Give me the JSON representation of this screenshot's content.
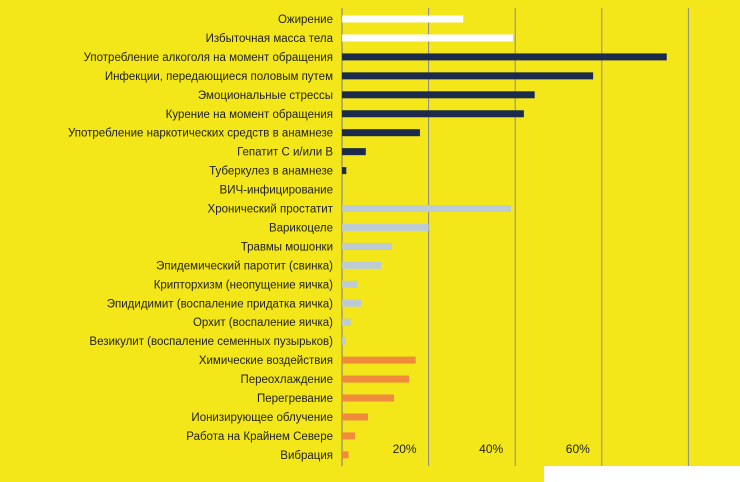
{
  "chart_data": {
    "type": "bar",
    "orientation": "horizontal",
    "title": "",
    "xlabel": "",
    "ylabel": "",
    "xlim": [
      0,
      80
    ],
    "x_ticks": [
      20,
      40,
      60
    ],
    "x_tick_labels": [
      "20%",
      "40%",
      "60%"
    ],
    "grid": true,
    "legend": "none",
    "categories": [
      "Ожирение",
      "Избыточная масса тела",
      "Употребление алкоголя на момент обращения",
      "Инфекции, передающиеся половым путем",
      "Эмоциональные стрессы",
      "Курение на момент обращения",
      "Употребление наркотических средств в анамнезе",
      "Гепатит С и/или В",
      "Туберкулез в анамнезе",
      "ВИЧ-инфицирование",
      "Хронический простатит",
      "Варикоцеле",
      "Травмы мошонки",
      "Эпидемический паротит (свинка)",
      "Крипторхизм (неопущение яичка)",
      "Эпидидимит (воспаление придатка яичка)",
      "Орхит (воспаление яичка)",
      "Везикулит (воспаление семенных пузырьков)",
      "Химические воздействия",
      "Переохлаждение",
      "Перегревание",
      "Ионизирующее облучение",
      "Работа на Крайнем Севере",
      "Вибрация"
    ],
    "values": [
      28,
      39.5,
      75,
      58,
      44.5,
      42,
      18,
      5.5,
      1,
      0,
      39,
      20,
      11.5,
      9,
      3.5,
      4.5,
      2,
      0.8,
      17,
      15.5,
      12,
      6,
      3,
      1.5
    ],
    "colors": [
      "#ffffff",
      "#ffffff",
      "#1c2b4b",
      "#1c2b4b",
      "#1c2b4b",
      "#1c2b4b",
      "#1c2b4b",
      "#1c2b4b",
      "#1c2b4b",
      "#1c2b4b",
      "#bccbd4",
      "#bccbd4",
      "#bccbd4",
      "#bccbd4",
      "#bccbd4",
      "#bccbd4",
      "#bccbd4",
      "#bccbd4",
      "#f08a3c",
      "#f08a3c",
      "#f08a3c",
      "#f08a3c",
      "#f08a3c",
      "#f08a3c"
    ],
    "grid_color": "#8a8a8a",
    "label_color": "#222222"
  }
}
